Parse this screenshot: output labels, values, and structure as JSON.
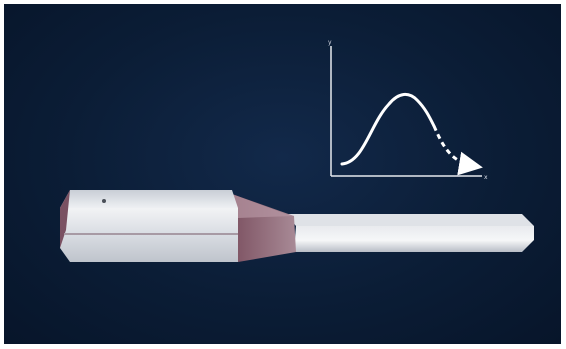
{
  "figure": {
    "background_color": "#0b1d36",
    "axis_x_letter": "x",
    "axis_y_letter": "y",
    "curve": {
      "shape": "bell-curve",
      "solid_portion": "rise-and-peak",
      "dashed_portion": "declining-tail-with-arrow",
      "color": "#ffffff"
    },
    "object": {
      "name": "usb-flash-drive-like-stick",
      "body_color": "#d7dbe2",
      "accent_color": "#8a5c6a",
      "has_reflection": true
    }
  }
}
